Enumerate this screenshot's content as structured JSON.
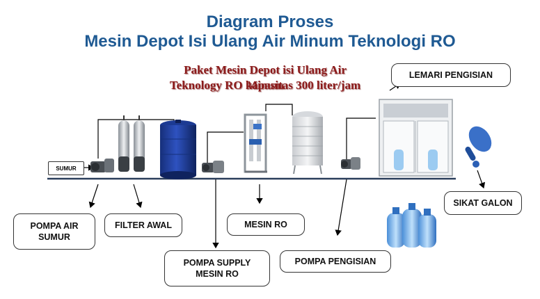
{
  "title": {
    "line1": "Diagram Proses",
    "line2": "Mesin Depot Isi Ulang Air Minum Teknologi RO"
  },
  "subtitle": {
    "line1": "Paket Mesin Depot isi Ulang Air Minum",
    "line2": "Teknology RO kapasitas 300 liter/jam"
  },
  "labels": {
    "sumur": "SUMUR",
    "pompa_air_sumur_1": "POMPA AIR",
    "pompa_air_sumur_2": "SUMUR",
    "filter_awal": "FILTER AWAL",
    "mesin_ro": "MESIN RO",
    "pompa_supply_1": "POMPA SUPPLY",
    "pompa_supply_2": "MESIN RO",
    "pompa_pengisian": "POMPA PENGISIAN",
    "lemari_pengisian": "LEMARI PENGISIAN",
    "sikat_galon": "SIKAT GALON"
  },
  "colors": {
    "title": "#1f5a93",
    "subtitle": "#8b1a1a",
    "tank_blue": "#1f3f9e",
    "line": "#000000"
  }
}
